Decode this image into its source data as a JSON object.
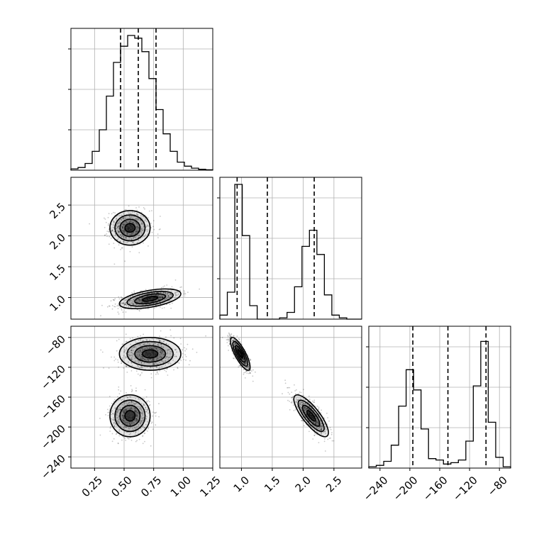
{
  "chart_data": {
    "type": "corner",
    "parameters": [
      {
        "range": [
          0.05,
          1.25
        ],
        "ticks": [
          0.25,
          0.5,
          0.75,
          1.0,
          1.25
        ],
        "tick_labels": [
          "0.25",
          "0.50",
          "0.75",
          "1.00",
          "1.25"
        ]
      },
      {
        "range": [
          0.65,
          2.95
        ],
        "ticks": [
          1.0,
          1.5,
          2.0,
          2.5
        ],
        "tick_labels": [
          "1.0",
          "1.5",
          "2.0",
          "2.5"
        ]
      },
      {
        "range": [
          -255,
          -65
        ],
        "ticks": [
          -240,
          -200,
          -160,
          -120,
          -80
        ],
        "tick_labels": [
          "−240",
          "−200",
          "−160",
          "−120",
          "−80"
        ]
      }
    ],
    "histograms": [
      {
        "counts": [
          0.01,
          0.02,
          0.05,
          0.14,
          0.3,
          0.55,
          0.8,
          0.92,
          1.0,
          0.98,
          0.88,
          0.68,
          0.45,
          0.27,
          0.14,
          0.06,
          0.03,
          0.015,
          0.007,
          0.003
        ],
        "quantiles": [
          0.47,
          0.62,
          0.77
        ]
      },
      {
        "counts": [
          0.03,
          0.2,
          1.0,
          0.62,
          0.1,
          0.0,
          0.0,
          0.0,
          0.01,
          0.05,
          0.24,
          0.54,
          0.66,
          0.48,
          0.18,
          0.03,
          0.01,
          0.0,
          0.0
        ],
        "quantiles": [
          0.93,
          1.42,
          2.18
        ]
      },
      {
        "counts": [
          0.01,
          0.02,
          0.05,
          0.17,
          0.46,
          0.73,
          0.58,
          0.29,
          0.07,
          0.06,
          0.03,
          0.04,
          0.06,
          0.2,
          0.61,
          0.94,
          0.34,
          0.08,
          0.01
        ],
        "quantiles": [
          -196,
          -149,
          -98
        ]
      }
    ],
    "clusters": [
      {
        "mean": [
          0.55,
          2.13,
          -185
        ],
        "sd": [
          0.085,
          0.14,
          14
        ]
      },
      {
        "mean": [
          0.72,
          0.98,
          -102
        ],
        "sd": [
          0.13,
          0.08,
          11
        ]
      }
    ],
    "pair_correlations": {
      "0-1": [
        0.0,
        0.5
      ],
      "0-2": [
        0.0,
        0.0
      ],
      "1-2": [
        -0.8,
        -0.8
      ]
    },
    "grid": true
  }
}
